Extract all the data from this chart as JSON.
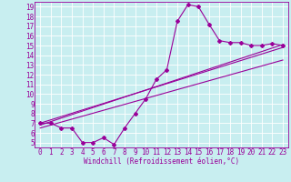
{
  "title": "",
  "xlabel": "Windchill (Refroidissement éolien,°C)",
  "ylabel": "",
  "bg_color": "#c8eef0",
  "line_color": "#990099",
  "grid_color": "#ffffff",
  "xlim": [
    -0.5,
    23.5
  ],
  "ylim": [
    4.5,
    19.5
  ],
  "xticks": [
    0,
    1,
    2,
    3,
    4,
    5,
    6,
    7,
    8,
    9,
    10,
    11,
    12,
    13,
    14,
    15,
    16,
    17,
    18,
    19,
    20,
    21,
    22,
    23
  ],
  "yticks": [
    5,
    6,
    7,
    8,
    9,
    10,
    11,
    12,
    13,
    14,
    15,
    16,
    17,
    18,
    19
  ],
  "main_x": [
    0,
    1,
    2,
    3,
    4,
    5,
    6,
    7,
    8,
    9,
    10,
    11,
    12,
    13,
    14,
    15,
    16,
    17,
    18,
    19,
    20,
    21,
    22,
    23
  ],
  "main_y": [
    7.0,
    7.0,
    6.5,
    6.5,
    5.0,
    5.0,
    5.5,
    4.8,
    6.5,
    8.0,
    9.5,
    11.5,
    12.5,
    17.5,
    19.2,
    19.0,
    17.2,
    15.5,
    15.3,
    15.3,
    15.0,
    15.0,
    15.2,
    15.0
  ],
  "line1_x": [
    0,
    23
  ],
  "line1_y": [
    6.8,
    15.1
  ],
  "line2_x": [
    0,
    23
  ],
  "line2_y": [
    7.0,
    14.8
  ],
  "line3_x": [
    0,
    23
  ],
  "line3_y": [
    6.5,
    13.5
  ],
  "font_size": 5.5
}
